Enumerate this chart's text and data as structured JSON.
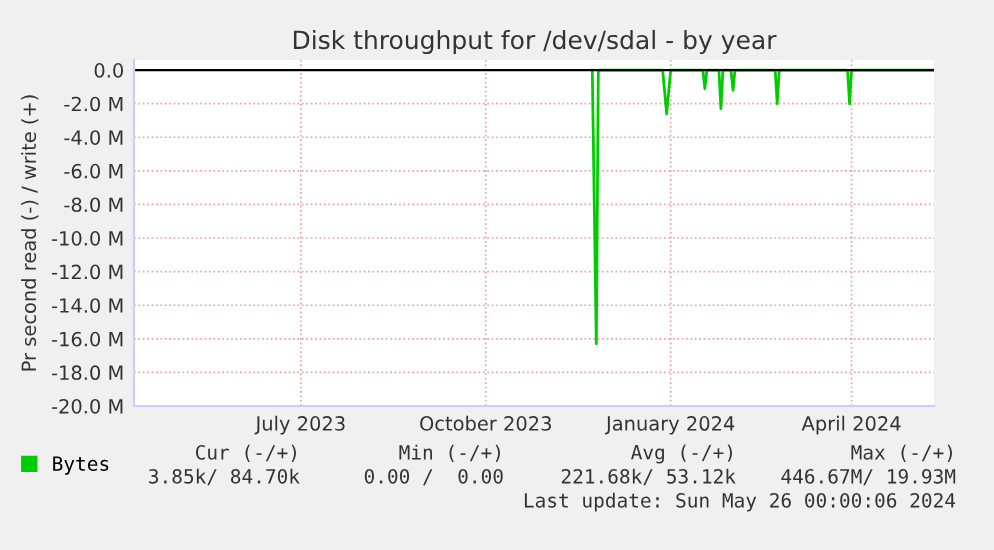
{
  "chart_data": {
    "type": "line",
    "title": "Disk throughput for /dev/sdal - by year",
    "ylabel": "Pr second read (-) / write (+)",
    "x": [
      "2023-12-08",
      "2023-12-10",
      "2023-12-11",
      "2024-01-12",
      "2024-01-14",
      "2024-01-16",
      "2024-02-01",
      "2024-02-02",
      "2024-02-03",
      "2024-02-09",
      "2024-02-10",
      "2024-02-11",
      "2024-02-15",
      "2024-02-16",
      "2024-02-17",
      "2024-03-08",
      "2024-03-09",
      "2024-03-10",
      "2024-04-13",
      "2024-04-14",
      "2024-04-15",
      "2024-05-26"
    ],
    "series": [
      {
        "name": "Bytes",
        "color": "#00cc00",
        "values": [
          0,
          -16.3,
          0,
          0,
          -2.6,
          0,
          0,
          -1.1,
          0,
          0,
          -2.3,
          0,
          0,
          -1.2,
          0,
          0,
          -2.0,
          0,
          0,
          -2.0,
          0,
          0
        ]
      }
    ],
    "xlim": [
      "2023-04-24",
      "2024-05-26"
    ],
    "xticks": [
      {
        "value": "2023-07-16",
        "label": "July 2023"
      },
      {
        "value": "2023-10-16",
        "label": "October 2023"
      },
      {
        "value": "2024-01-16",
        "label": "January 2024"
      },
      {
        "value": "2024-04-15",
        "label": "April 2024"
      }
    ],
    "ylim": [
      -20,
      0.6
    ],
    "yticks": [
      {
        "value": 0,
        "label": "0.0"
      },
      {
        "value": -2,
        "label": "-2.0 M"
      },
      {
        "value": -4,
        "label": "-4.0 M"
      },
      {
        "value": -6,
        "label": "-6.0 M"
      },
      {
        "value": -8,
        "label": "-8.0 M"
      },
      {
        "value": -10,
        "label": "-10.0 M"
      },
      {
        "value": -12,
        "label": "-12.0 M"
      },
      {
        "value": -14,
        "label": "-14.0 M"
      },
      {
        "value": -16,
        "label": "-16.0 M"
      },
      {
        "value": -18,
        "label": "-18.0 M"
      },
      {
        "value": -20,
        "label": "-20.0 M"
      }
    ],
    "grid": true,
    "legend": "bottom left",
    "line_style": "solid",
    "annotations": [
      "Cur (-/+)",
      "Min (-/+)",
      "Avg (-/+)",
      "Max (-/+)",
      "3.85k/ 84.70k",
      "0.00 /  0.00",
      "221.68k/ 53.12k",
      "446.67M/ 19.93M",
      "Last update: Sun May 26 00:00:06 2024"
    ]
  }
}
